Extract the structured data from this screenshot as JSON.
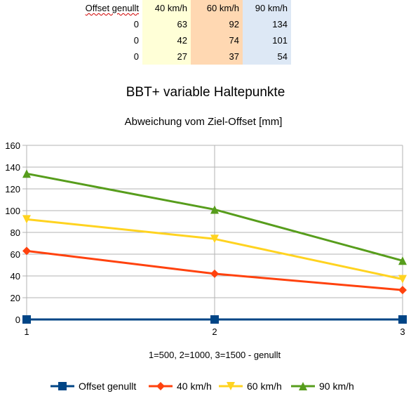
{
  "table": {
    "headers": [
      "Offset genullt",
      "40 km/h",
      "60 km/h",
      "90 km/h"
    ],
    "rows": [
      [
        "0",
        "63",
        "92",
        "134"
      ],
      [
        "0",
        "42",
        "74",
        "101"
      ],
      [
        "0",
        "27",
        "37",
        "54"
      ]
    ],
    "column_colors": [
      "#ffffff",
      "#ffffd7",
      "#ffd8b2",
      "#dde8f5"
    ]
  },
  "chart_data": {
    "type": "line",
    "title": "BBT+ variable Haltepunkte",
    "subtitle": "Abweichung vom Ziel-Offset [mm]",
    "xlabel": "1=500, 2=1000, 3=1500 - genullt",
    "ylabel": "",
    "x": [
      1,
      2,
      3
    ],
    "xlim": [
      1,
      3
    ],
    "ylim": [
      0,
      160
    ],
    "yticks": [
      0,
      20,
      40,
      60,
      80,
      100,
      120,
      140,
      160
    ],
    "grid": true,
    "legend": "bottom",
    "series": [
      {
        "name": "Offset genullt",
        "values": [
          0,
          0,
          0
        ],
        "color": "#004586",
        "marker": "square"
      },
      {
        "name": "40 km/h",
        "values": [
          63,
          42,
          27
        ],
        "color": "#ff420e",
        "marker": "diamond"
      },
      {
        "name": "60 km/h",
        "values": [
          92,
          74,
          37
        ],
        "color": "#ffd320",
        "marker": "triangle-down"
      },
      {
        "name": "90 km/h",
        "values": [
          134,
          101,
          54
        ],
        "color": "#579d1c",
        "marker": "triangle-up"
      }
    ]
  }
}
